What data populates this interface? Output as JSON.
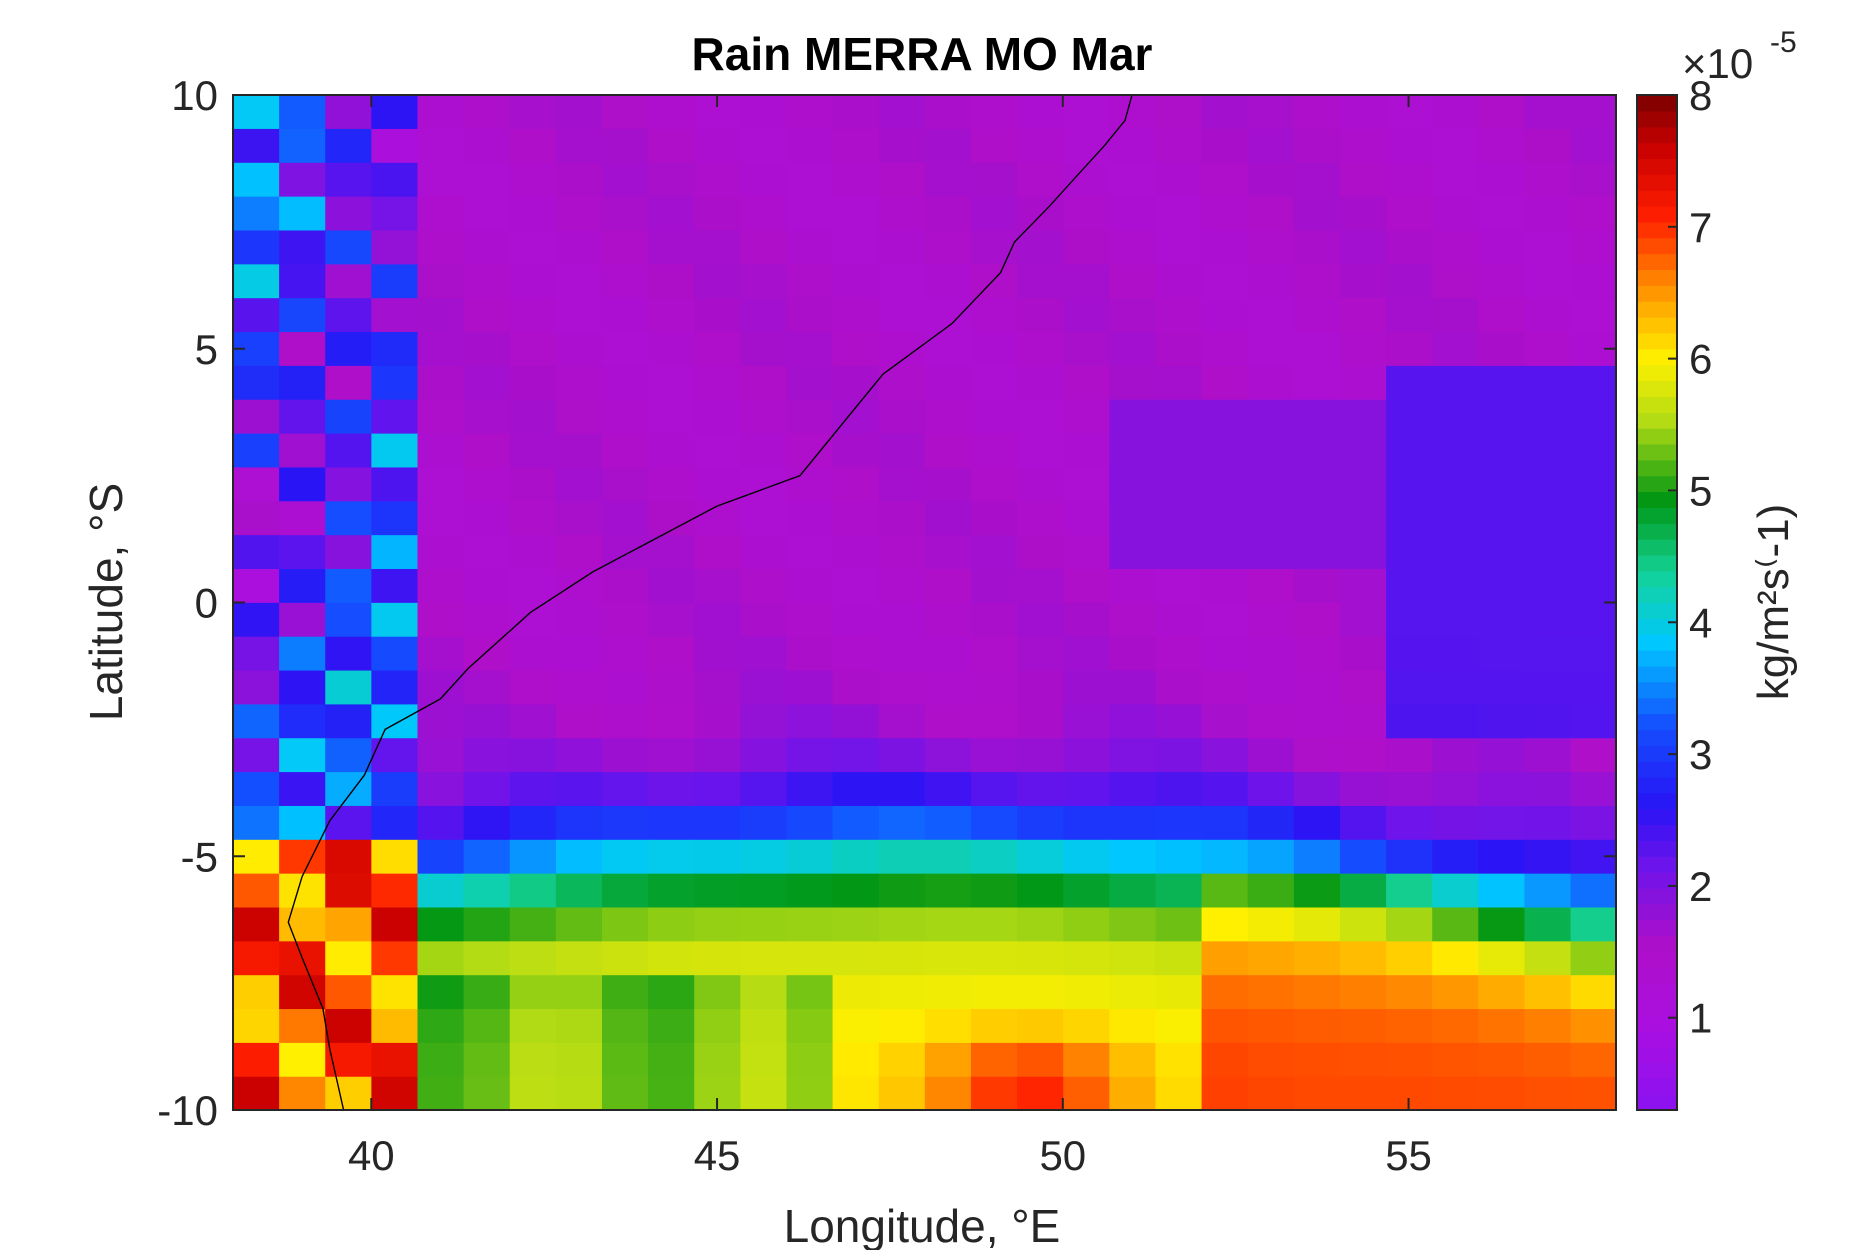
{
  "chart_data": {
    "type": "heatmap",
    "title": "Rain MERRA MO Mar",
    "xlabel": "Longitude, °E",
    "ylabel": "Latitude, °S",
    "colorbar_label": "kg/m²s⁽-1)",
    "colorbar_exponent_text": "×10",
    "colorbar_exponent_power": "-5",
    "xlim": [
      38,
      58
    ],
    "ylim": [
      -10,
      10
    ],
    "clim": [
      0.3,
      8
    ],
    "colormap": "jet-like, low values purple (#8a12f0), high values dark red (#7a0000)",
    "x_ticks": [
      40,
      45,
      50,
      55
    ],
    "x_tick_labels": [
      "40",
      "45",
      "50",
      "55"
    ],
    "y_ticks": [
      10,
      5,
      0,
      -5,
      -10
    ],
    "y_tick_labels": [
      "10",
      "5",
      "0",
      "-5",
      "-10"
    ],
    "colorbar_ticks": [
      1,
      2,
      3,
      4,
      5,
      6,
      7,
      8
    ],
    "colorbar_tick_labels": [
      "1",
      "2",
      "3",
      "4",
      "5",
      "6",
      "7",
      "8"
    ],
    "grid_resolution_deg": 0.667,
    "coastline": [
      [
        51.0,
        10
      ],
      [
        50.9,
        9.5
      ],
      [
        50.6,
        9.0
      ],
      [
        50.2,
        8.4
      ],
      [
        49.8,
        7.8
      ],
      [
        49.3,
        7.1
      ],
      [
        49.1,
        6.5
      ],
      [
        48.4,
        5.5
      ],
      [
        47.4,
        4.5
      ],
      [
        46.2,
        2.5
      ],
      [
        45.0,
        1.9
      ],
      [
        43.2,
        0.6
      ],
      [
        42.3,
        -0.2
      ],
      [
        41.4,
        -1.3
      ],
      [
        41.0,
        -1.9
      ],
      [
        40.6,
        -2.2
      ],
      [
        40.2,
        -2.5
      ],
      [
        39.9,
        -3.4
      ],
      [
        39.4,
        -4.3
      ],
      [
        39.0,
        -5.4
      ],
      [
        38.8,
        -6.3
      ],
      [
        39.0,
        -7.0
      ],
      [
        39.3,
        -8.0
      ],
      [
        39.4,
        -8.8
      ],
      [
        39.5,
        -9.4
      ],
      [
        39.6,
        -10
      ]
    ],
    "field_description": "Moderate rain (about 1.5e-5) over the whole northern region; heavy rain band (5-8e-5) south of about 5°S, strongest near 49.5°E, 9.5°S and along the coast near 39°E; cyan/green transition band near 5.5-6.5°S."
  }
}
